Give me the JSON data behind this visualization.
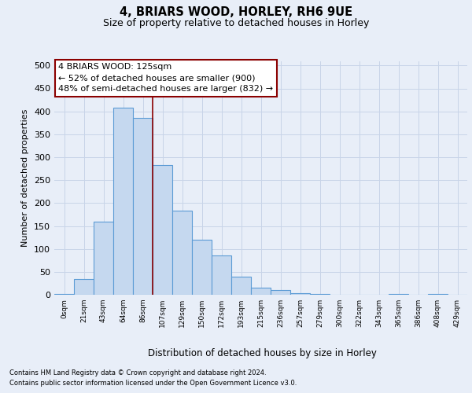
{
  "title1": "4, BRIARS WOOD, HORLEY, RH6 9UE",
  "title2": "Size of property relative to detached houses in Horley",
  "xlabel": "Distribution of detached houses by size in Horley",
  "ylabel": "Number of detached properties",
  "footnote1": "Contains HM Land Registry data © Crown copyright and database right 2024.",
  "footnote2": "Contains public sector information licensed under the Open Government Licence v3.0.",
  "annotation_line1": "4 BRIARS WOOD: 125sqm",
  "annotation_line2": "← 52% of detached houses are smaller (900)",
  "annotation_line3": "48% of semi-detached houses are larger (832) →",
  "bar_labels": [
    "0sqm",
    "21sqm",
    "43sqm",
    "64sqm",
    "86sqm",
    "107sqm",
    "129sqm",
    "150sqm",
    "172sqm",
    "193sqm",
    "215sqm",
    "236sqm",
    "257sqm",
    "279sqm",
    "300sqm",
    "322sqm",
    "343sqm",
    "365sqm",
    "386sqm",
    "408sqm",
    "429sqm"
  ],
  "bar_values": [
    2,
    35,
    160,
    408,
    385,
    283,
    183,
    120,
    85,
    40,
    16,
    10,
    3,
    1,
    0,
    0,
    0,
    1,
    0,
    1,
    0
  ],
  "bar_color": "#c5d8ef",
  "bar_edge_color": "#5b9bd5",
  "ylim": [
    0,
    510
  ],
  "yticks": [
    0,
    50,
    100,
    150,
    200,
    250,
    300,
    350,
    400,
    450,
    500
  ],
  "property_line_x": 4.5,
  "red_line_color": "#8b0000",
  "grid_color": "#c8d4e8",
  "background_color": "#e8eef8"
}
